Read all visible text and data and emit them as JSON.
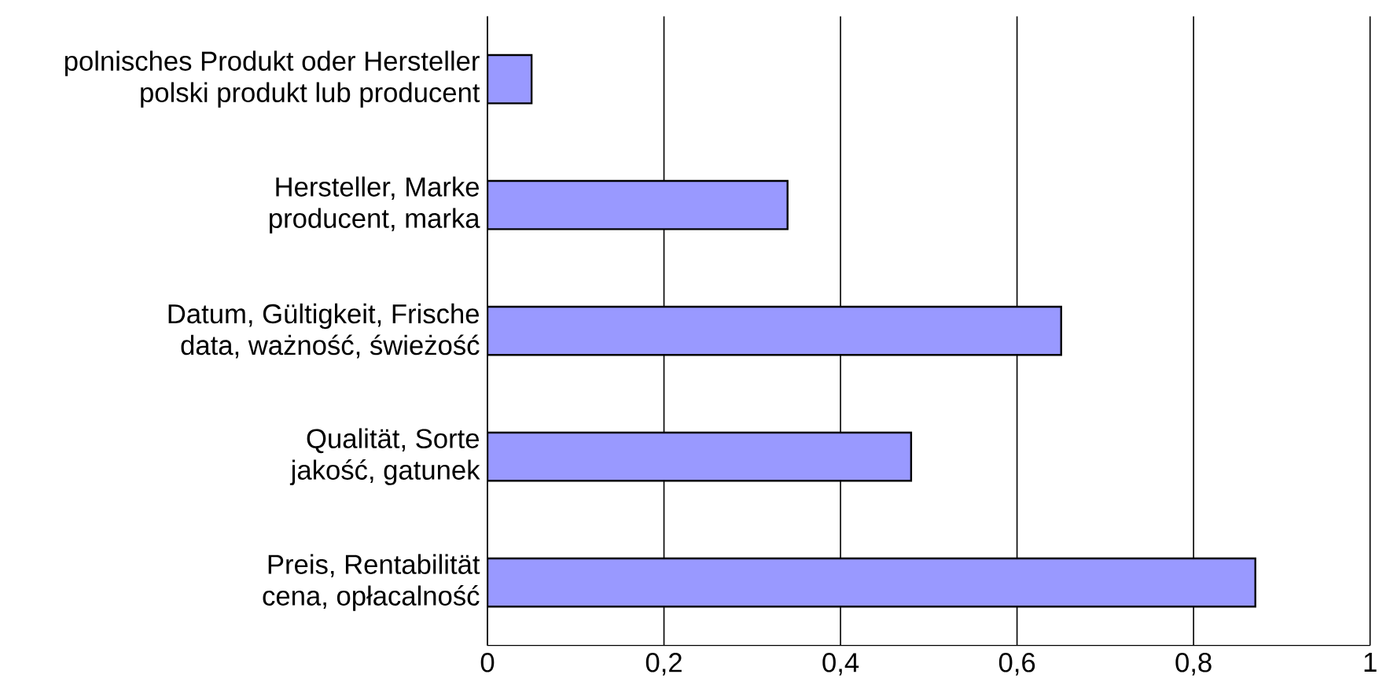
{
  "chart_data": {
    "type": "bar",
    "orientation": "horizontal",
    "categories": [
      "polnisches Produkt oder Hersteller polski produkt lub producent",
      "Hersteller, Marke producent, marka",
      "Datum, Gültigkeit, Frische data, ważność, świeżość",
      "Qualität, Sorte jakość, gatunek",
      "Preis, Rentabilität cena, opłacalność"
    ],
    "values": [
      0.05,
      0.34,
      0.65,
      0.48,
      0.87
    ],
    "color": "#9999ff",
    "xlim": [
      0,
      1
    ],
    "xticks": [
      0,
      {
        "value": 0.2,
        "label": "0,2"
      },
      {
        "value": 0.4,
        "label": "0,4"
      },
      {
        "value": 0.6,
        "label": "0,6"
      },
      {
        "value": 0.8,
        "label": "0,8"
      },
      1
    ],
    "grid": "x"
  }
}
